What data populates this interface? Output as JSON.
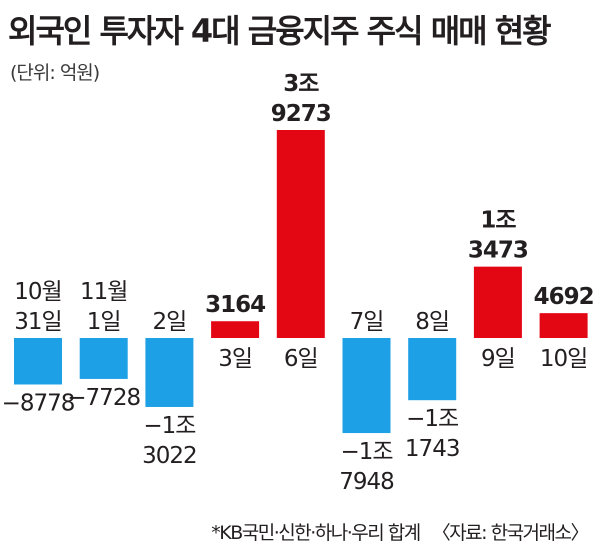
{
  "title": "외국인 투자자 4대 금융지주 주식 매매 현황",
  "unit": "(단위: 억원)",
  "footnote": {
    "note": "*KB국민·신한·하나·우리 합계",
    "source": "〈자료: 한국거래소〉"
  },
  "colors": {
    "positive": "#e30613",
    "negative": "#1ea0e6",
    "text": "#231f20"
  },
  "chart_data": {
    "type": "bar",
    "categories": [
      "10월 31일",
      "11월 1일",
      "2일",
      "3일",
      "6일",
      "7일",
      "8일",
      "9일",
      "10일"
    ],
    "category_lines": [
      [
        "10월",
        "31일"
      ],
      [
        "11월",
        "1일"
      ],
      [
        "2일"
      ],
      [
        "3일"
      ],
      [
        "6일"
      ],
      [
        "7일"
      ],
      [
        "8일"
      ],
      [
        "9일"
      ],
      [
        "10일"
      ]
    ],
    "values": [
      -8778,
      -7728,
      -13022,
      3164,
      39273,
      -17948,
      -11743,
      13473,
      4692
    ],
    "value_labels": [
      [
        "−8778"
      ],
      [
        "−7728"
      ],
      [
        "−1조",
        "3022"
      ],
      [
        "3164"
      ],
      [
        "3조",
        "9273"
      ],
      [
        "−1조",
        "7948"
      ],
      [
        "−1조",
        "1743"
      ],
      [
        "1조",
        "3473"
      ],
      [
        "4692"
      ]
    ],
    "unit": "억원",
    "grid": false,
    "legend": "none"
  }
}
